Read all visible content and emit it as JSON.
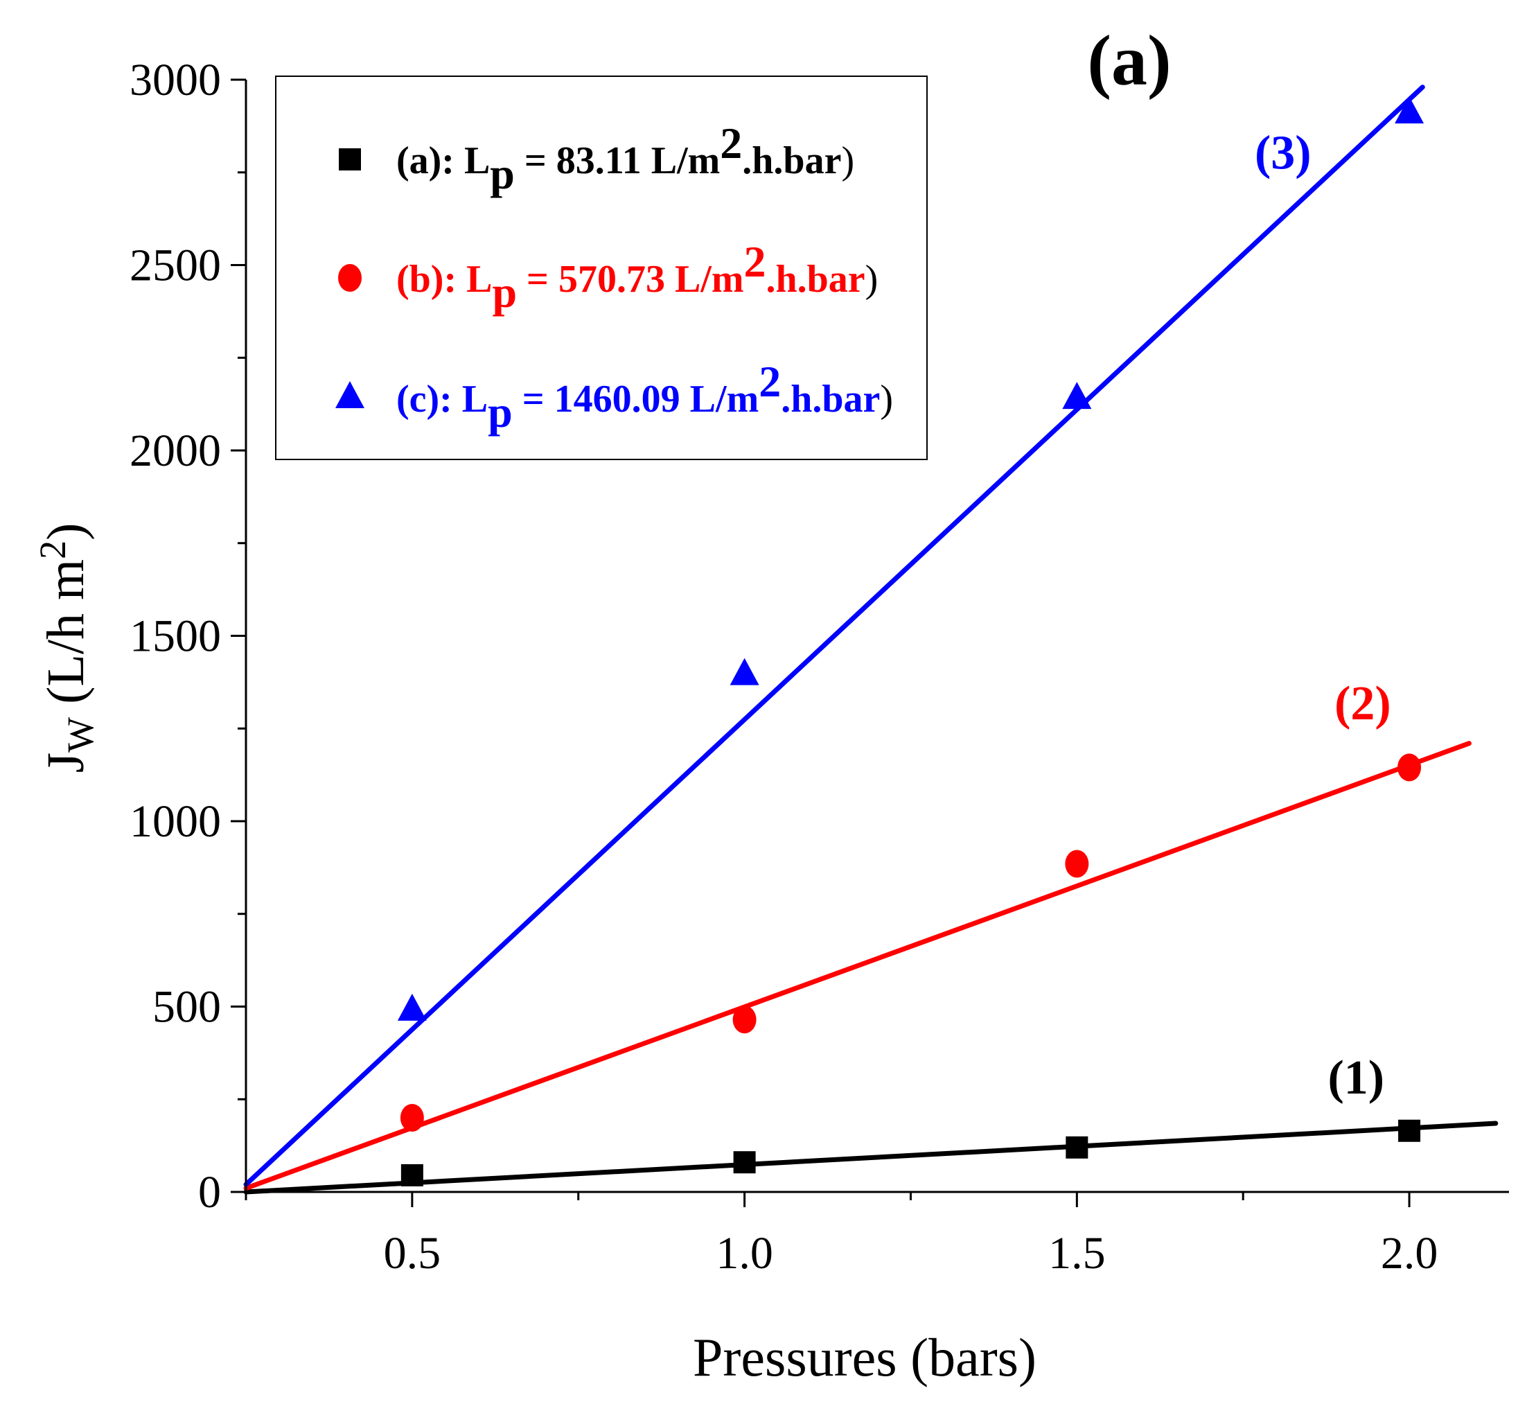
{
  "chart_data": {
    "type": "scatter",
    "panel_label": "(a)",
    "xlabel": "Pressures (bars)",
    "ylabel": {
      "main": "J",
      "sub": "W",
      "unit_prefix": "(L/h m",
      "unit_sup": "2",
      "unit_suffix": ")"
    },
    "xlim": [
      0.25,
      2.15
    ],
    "ylim": [
      0,
      3000
    ],
    "xticks": [
      0.5,
      1.0,
      1.5,
      2.0
    ],
    "xtick_labels": [
      "0.5",
      "1.0",
      "1.5",
      "2.0"
    ],
    "xminor": [
      0.25,
      0.75,
      1.25,
      1.75
    ],
    "yticks": [
      0,
      500,
      1000,
      1500,
      2000,
      2500,
      3000
    ],
    "ytick_labels": [
      "0",
      "500",
      "1000",
      "1500",
      "2000",
      "2500",
      "3000"
    ],
    "yminor": [
      250,
      750,
      1250,
      1750,
      2250,
      2750
    ],
    "legend_position": "top-left",
    "series": [
      {
        "id": "a",
        "marker": "square",
        "color": "#000000",
        "x": [
          0.5,
          1.0,
          1.5,
          2.0
        ],
        "y": [
          45,
          80,
          120,
          165
        ],
        "fit": {
          "x0": 0.25,
          "y0": 0,
          "x1": 2.13,
          "y1": 185
        },
        "curve_label": "(1)",
        "curve_label_pos": {
          "x": 1.92,
          "y": 265
        },
        "legend": {
          "prefix": "(a): L",
          "sub": "p",
          "mid": " = 83.11 L/m",
          "sup": "2",
          "suffix": ".h.bar",
          "close": ")"
        }
      },
      {
        "id": "b",
        "marker": "circle",
        "color": "#ff0000",
        "x": [
          0.5,
          1.0,
          1.5,
          2.0
        ],
        "y": [
          200,
          465,
          885,
          1145
        ],
        "fit": {
          "x0": 0.25,
          "y0": 10,
          "x1": 2.09,
          "y1": 1210
        },
        "curve_label": "(2)",
        "curve_label_pos": {
          "x": 1.93,
          "y": 1275
        },
        "legend": {
          "prefix": "(b): L",
          "sub": "p",
          "mid": " = 570.73 L/m",
          "sup": "2",
          "suffix": ".h.bar",
          "close": ")"
        }
      },
      {
        "id": "c",
        "marker": "triangle",
        "color": "#0000ff",
        "x": [
          0.5,
          1.0,
          1.5,
          2.0
        ],
        "y": [
          490,
          1395,
          2140,
          2910
        ],
        "fit": {
          "x0": 0.25,
          "y0": 20,
          "x1": 2.02,
          "y1": 2980
        },
        "curve_label": "(3)",
        "curve_label_pos": {
          "x": 1.81,
          "y": 2760
        },
        "legend": {
          "prefix": "(c): L",
          "sub": "p",
          "mid": " = 1460.09 L/m",
          "sup": "2",
          "suffix": ".h.bar",
          "close": ")"
        }
      }
    ]
  }
}
